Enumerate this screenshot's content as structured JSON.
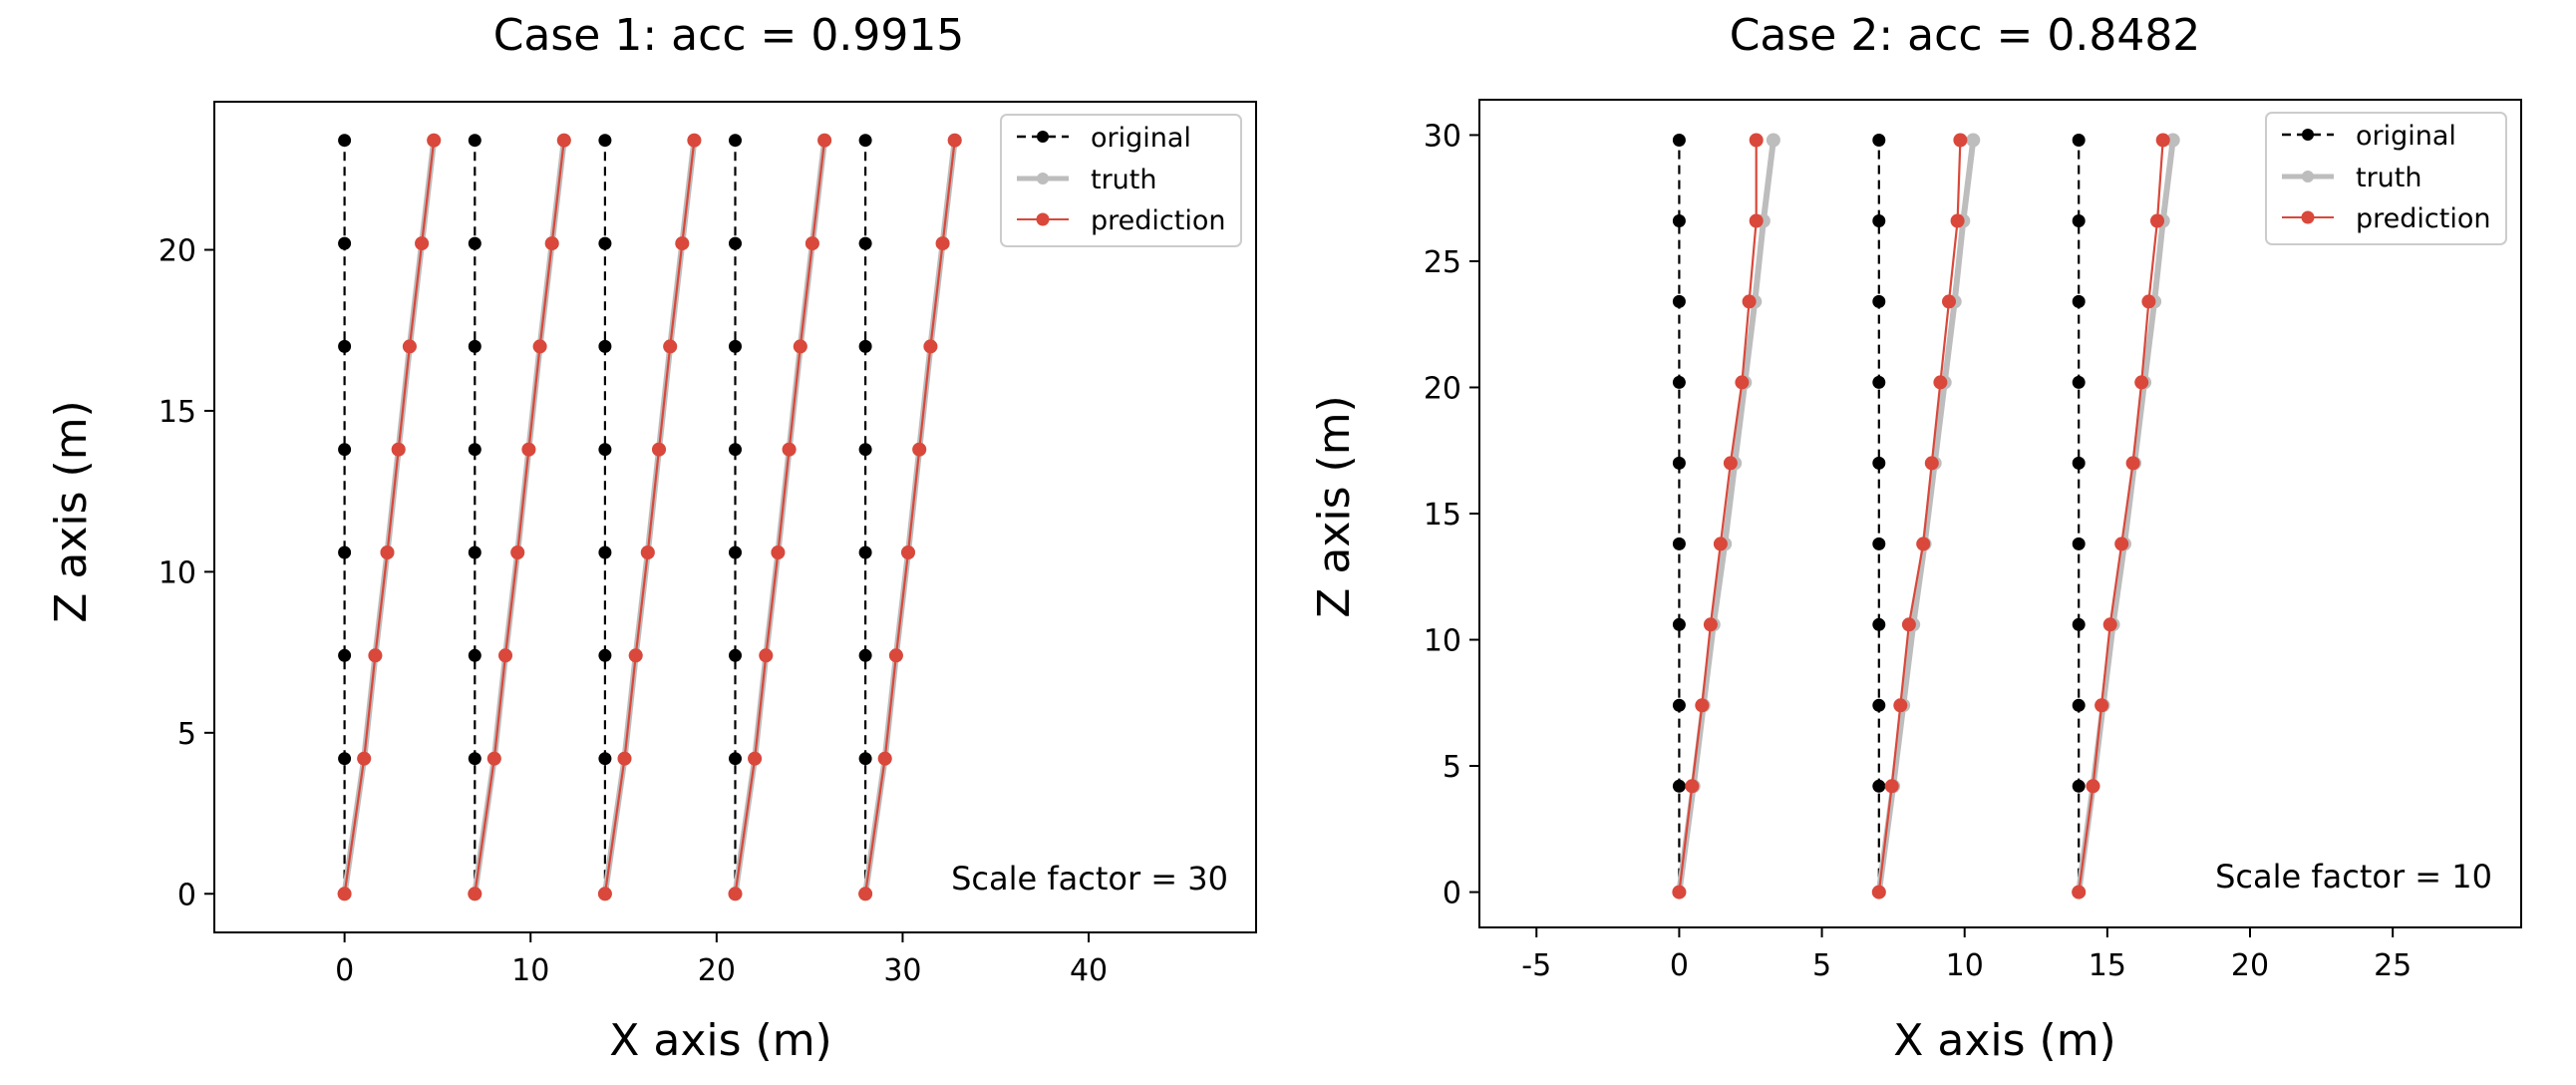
{
  "chart_data": [
    {
      "type": "line",
      "title": "Case 1:  acc = 0.9915",
      "xlabel": "X axis (m)",
      "ylabel": "Z axis (m)",
      "xlim": [
        -7,
        49
      ],
      "ylim": [
        -1.2,
        24.6
      ],
      "xticks": [
        0,
        10,
        20,
        30,
        40
      ],
      "yticks": [
        0,
        5,
        10,
        15,
        20
      ],
      "xtick_labels": [
        "0",
        "10",
        "20",
        "30",
        "40"
      ],
      "ytick_labels": [
        "0",
        "5",
        "10",
        "15",
        "20"
      ],
      "grid": false,
      "legend": "top-right",
      "legend_entries": [
        "original",
        "truth",
        "prediction"
      ],
      "annotation": "Scale factor = 30",
      "z_levels": [
        0,
        4.2,
        7.4,
        10.6,
        13.8,
        17.0,
        20.2,
        23.4
      ],
      "series": [
        {
          "name": "original",
          "style": "dashed",
          "color": "#000000",
          "lines": [
            {
              "x": [
                0,
                0,
                0,
                0,
                0,
                0,
                0,
                0
              ]
            },
            {
              "x": [
                7,
                7,
                7,
                7,
                7,
                7,
                7,
                7
              ]
            },
            {
              "x": [
                14,
                14,
                14,
                14,
                14,
                14,
                14,
                14
              ]
            },
            {
              "x": [
                21,
                21,
                21,
                21,
                21,
                21,
                21,
                21
              ]
            },
            {
              "x": [
                28,
                28,
                28,
                28,
                28,
                28,
                28,
                28
              ]
            }
          ]
        },
        {
          "name": "truth",
          "style": "solid",
          "color": "#bdbdbd",
          "lines": [
            {
              "x": [
                0,
                1.05,
                1.65,
                2.3,
                2.9,
                3.5,
                4.15,
                4.8
              ]
            },
            {
              "x": [
                7,
                8.05,
                8.65,
                9.3,
                9.9,
                10.5,
                11.15,
                11.8
              ]
            },
            {
              "x": [
                14,
                15.05,
                15.65,
                16.3,
                16.9,
                17.5,
                18.15,
                18.8
              ]
            },
            {
              "x": [
                21,
                22.05,
                22.65,
                23.3,
                23.9,
                24.5,
                25.15,
                25.8
              ]
            },
            {
              "x": [
                28,
                29.05,
                29.65,
                30.3,
                30.9,
                31.5,
                32.15,
                32.8
              ]
            }
          ]
        },
        {
          "name": "prediction",
          "style": "solid",
          "color": "#d9483b",
          "lines": [
            {
              "x": [
                0,
                1.05,
                1.65,
                2.3,
                2.9,
                3.5,
                4.15,
                4.8
              ]
            },
            {
              "x": [
                7,
                8.05,
                8.65,
                9.3,
                9.9,
                10.5,
                11.15,
                11.8
              ]
            },
            {
              "x": [
                14,
                15.05,
                15.65,
                16.3,
                16.9,
                17.5,
                18.15,
                18.8
              ]
            },
            {
              "x": [
                21,
                22.05,
                22.65,
                23.3,
                23.9,
                24.5,
                25.15,
                25.8
              ]
            },
            {
              "x": [
                28,
                29.05,
                29.65,
                30.3,
                30.9,
                31.5,
                32.15,
                32.8
              ]
            }
          ]
        }
      ]
    },
    {
      "type": "line",
      "title": "Case 2:  acc = 0.8482",
      "xlabel": "X axis (m)",
      "ylabel": "Z axis (m)",
      "xlim": [
        -7,
        29.5
      ],
      "ylim": [
        -1.4,
        31.4
      ],
      "xticks": [
        -5,
        0,
        5,
        10,
        15,
        20,
        25
      ],
      "yticks": [
        0,
        5,
        10,
        15,
        20,
        25,
        30
      ],
      "xtick_labels": [
        "-5",
        "0",
        "5",
        "10",
        "15",
        "20",
        "25"
      ],
      "ytick_labels": [
        "0",
        "5",
        "10",
        "15",
        "20",
        "25",
        "30"
      ],
      "grid": false,
      "legend": "top-right",
      "legend_entries": [
        "original",
        "truth",
        "prediction"
      ],
      "annotation": "Scale factor = 10",
      "z_levels": [
        0,
        4.2,
        7.4,
        10.6,
        13.8,
        17.0,
        20.2,
        23.4,
        26.6,
        29.8
      ],
      "series": [
        {
          "name": "original",
          "style": "dashed",
          "color": "#000000",
          "lines": [
            {
              "x": [
                0,
                0,
                0,
                0,
                0,
                0,
                0,
                0,
                0,
                0
              ]
            },
            {
              "x": [
                7,
                7,
                7,
                7,
                7,
                7,
                7,
                7,
                7,
                7
              ]
            },
            {
              "x": [
                14,
                14,
                14,
                14,
                14,
                14,
                14,
                14,
                14,
                14
              ]
            }
          ]
        },
        {
          "name": "truth",
          "style": "solid",
          "color": "#bdbdbd",
          "lines": [
            {
              "x": [
                0,
                0.5,
                0.85,
                1.2,
                1.6,
                1.95,
                2.3,
                2.65,
                2.95,
                3.3
              ]
            },
            {
              "x": [
                7,
                7.5,
                7.85,
                8.2,
                8.6,
                8.95,
                9.3,
                9.65,
                9.95,
                10.3
              ]
            },
            {
              "x": [
                14,
                14.5,
                14.85,
                15.2,
                15.6,
                15.95,
                16.3,
                16.65,
                16.95,
                17.3
              ]
            }
          ]
        },
        {
          "name": "prediction",
          "style": "solid",
          "color": "#d9483b",
          "lines": [
            {
              "x": [
                0,
                0.45,
                0.8,
                1.1,
                1.45,
                1.8,
                2.2,
                2.45,
                2.7,
                2.7
              ]
            },
            {
              "x": [
                7,
                7.45,
                7.75,
                8.05,
                8.55,
                8.85,
                9.15,
                9.45,
                9.75,
                9.85
              ]
            },
            {
              "x": [
                14,
                14.5,
                14.8,
                15.1,
                15.5,
                15.9,
                16.2,
                16.45,
                16.75,
                16.95
              ]
            }
          ]
        }
      ]
    }
  ]
}
